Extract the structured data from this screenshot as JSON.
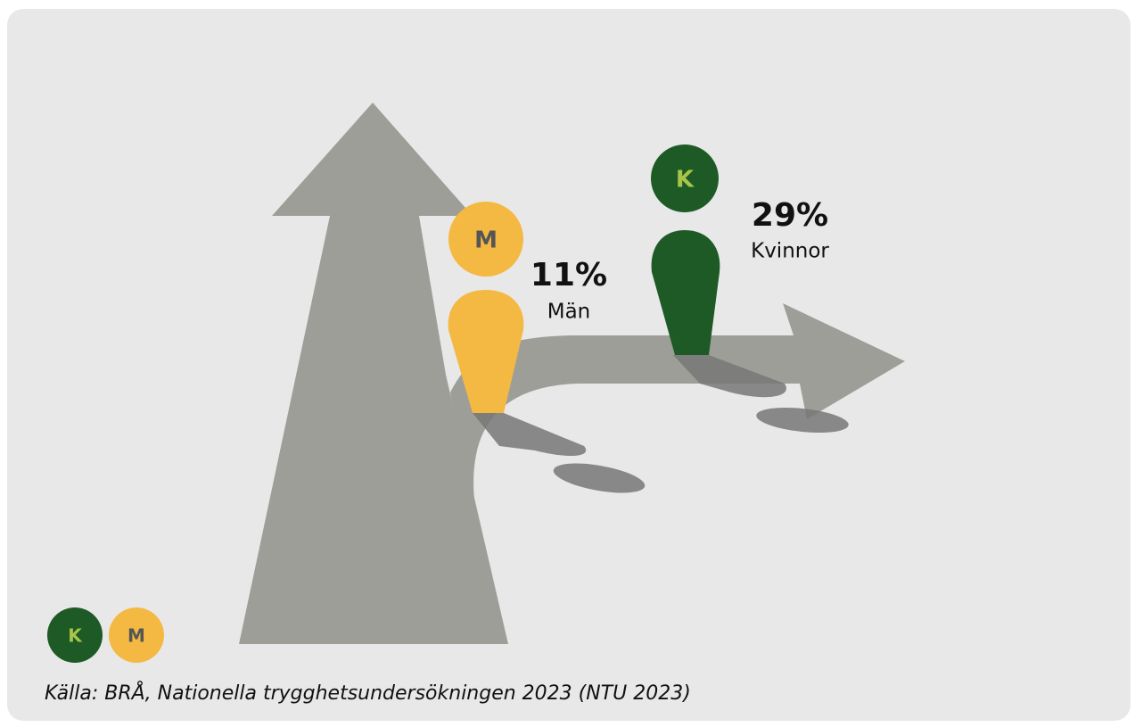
{
  "figures": [
    {
      "letter": "M",
      "percent": "11%",
      "name": "Män"
    },
    {
      "letter": "K",
      "percent": "29%",
      "name": "Kvinnor"
    }
  ],
  "legend": [
    "K",
    "M"
  ],
  "source": "Källa: BRÅ, Nationella trygghetsundersökningen 2023 (NTU 2023)"
}
